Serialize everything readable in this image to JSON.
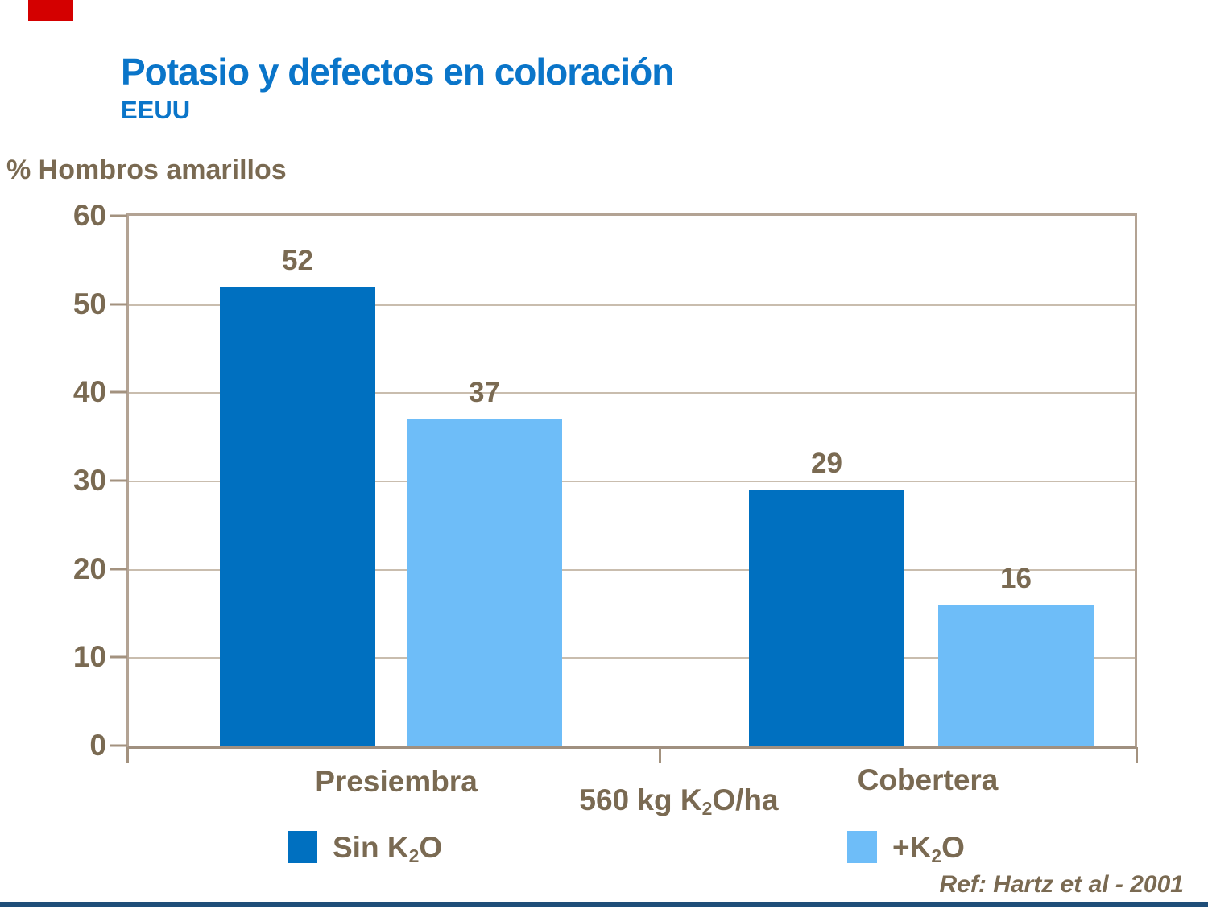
{
  "header": {
    "title": "Potasio y defectos en coloración",
    "subtitle": "EEUU",
    "title_color": "#0A75C9"
  },
  "chart_data": {
    "type": "bar",
    "title": "Potasio y defectos en coloración",
    "subtitle": "EEUU",
    "ylabel": "% Hombros amarillos",
    "xlabel": "",
    "ylim": [
      0,
      60
    ],
    "yticks": [
      0,
      10,
      20,
      30,
      40,
      50,
      60
    ],
    "grid": true,
    "categories": [
      "Presiembra",
      "Cobertera"
    ],
    "series": [
      {
        "name": "Sin K2O",
        "color": "#0070C0",
        "values": [
          52,
          29
        ]
      },
      {
        "name": "+K2O",
        "color": "#6EBDF8",
        "values": [
          37,
          16
        ]
      }
    ],
    "annotation": "560 kg K2O/ha",
    "legend_position": "bottom",
    "reference": "Ref: Hartz et al - 2001"
  },
  "labels": {
    "ylabel": "% Hombros amarillos",
    "category_left": "Presiembra",
    "category_right": "Cobertera",
    "annotation": {
      "pre": "560 kg K",
      "sub": "2",
      "post": "O/ha"
    },
    "legend_sin": {
      "pre": "Sin K",
      "sub": "2",
      "post": "O"
    },
    "legend_plus": {
      "pre": "+K",
      "sub": "2",
      "post": "O"
    },
    "reference": "Ref: Hartz et al - 2001"
  },
  "colors": {
    "accent_red": "#D40000",
    "bottom_rule_navy": "#1F4E79",
    "text_brown": "#7A6A52",
    "axis_border": "#B3A394",
    "gridline": "#C9BDAE",
    "tick": "#A3927F",
    "series_dark": "#0070C0",
    "series_light": "#6EBDF8"
  }
}
